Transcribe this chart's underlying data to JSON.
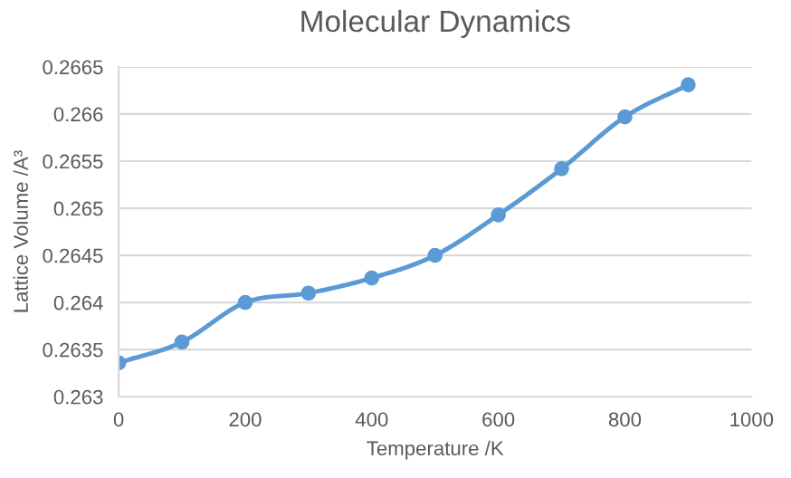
{
  "chart_data": {
    "type": "line",
    "title": "Molecular Dynamics",
    "xlabel": "Temperature /K",
    "ylabel": "Lattice Volume /A³",
    "x": [
      0,
      100,
      200,
      300,
      400,
      500,
      600,
      700,
      800,
      900
    ],
    "series": [
      {
        "color": "#5b9bd5",
        "values": [
          0.26336,
          0.26358,
          0.264,
          0.2641,
          0.26426,
          0.2645,
          0.26493,
          0.26542,
          0.26597,
          0.26631
        ]
      }
    ],
    "xlim": [
      0,
      1000
    ],
    "xticks": [
      0,
      200,
      400,
      600,
      800,
      1000
    ],
    "ylim": [
      0.263,
      0.2665
    ],
    "yticks": [
      0.263,
      0.2635,
      0.264,
      0.2645,
      0.265,
      0.2655,
      0.266,
      0.2665
    ],
    "grid": "y",
    "marker": "circle",
    "line_style": "solid",
    "legend": false
  }
}
